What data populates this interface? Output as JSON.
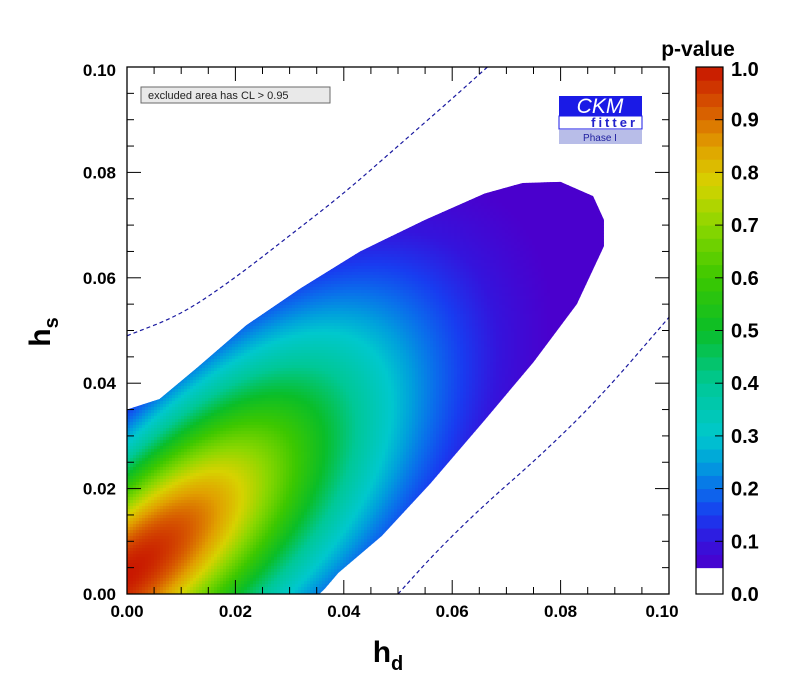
{
  "chart_data": {
    "type": "heatmap",
    "xlabel": "h",
    "xlabel_sub": "d",
    "ylabel": "h",
    "ylabel_sub": "s",
    "xlim": [
      0.0,
      0.1
    ],
    "ylim": [
      0.0,
      0.1
    ],
    "x_ticks": [
      "0.00",
      "0.02",
      "0.04",
      "0.06",
      "0.08",
      "0.10"
    ],
    "y_ticks": [
      "0.00",
      "0.02",
      "0.04",
      "0.06",
      "0.08",
      "0.10"
    ],
    "colorbar": {
      "title": "p-value",
      "range": [
        0.0,
        1.0
      ],
      "ticks": [
        "0.0",
        "0.1",
        "0.2",
        "0.3",
        "0.4",
        "0.5",
        "0.6",
        "0.7",
        "0.8",
        "0.9",
        "1.0"
      ]
    },
    "best_fit": {
      "hd": 0.0,
      "hs": 0.0,
      "p": 1.0
    },
    "allowed_region_boundary_p005": [
      [
        0.0,
        0.0
      ],
      [
        0.0,
        0.035
      ],
      [
        0.006,
        0.037
      ],
      [
        0.013,
        0.043
      ],
      [
        0.022,
        0.051
      ],
      [
        0.032,
        0.058
      ],
      [
        0.043,
        0.065
      ],
      [
        0.055,
        0.071
      ],
      [
        0.066,
        0.076
      ],
      [
        0.073,
        0.078
      ],
      [
        0.08,
        0.0782
      ],
      [
        0.086,
        0.0755
      ],
      [
        0.088,
        0.071
      ],
      [
        0.088,
        0.066
      ],
      [
        0.083,
        0.055
      ],
      [
        0.075,
        0.044
      ],
      [
        0.066,
        0.033
      ],
      [
        0.056,
        0.021
      ],
      [
        0.047,
        0.011
      ],
      [
        0.039,
        0.004
      ],
      [
        0.0365,
        0.001
      ],
      [
        0.0355,
        0.0
      ]
    ],
    "dashed_contours": [
      {
        "points": [
          [
            0.0,
            0.049
          ],
          [
            0.01,
            0.053
          ],
          [
            0.02,
            0.06
          ],
          [
            0.03,
            0.068
          ],
          [
            0.04,
            0.076
          ],
          [
            0.05,
            0.085
          ],
          [
            0.06,
            0.094
          ],
          [
            0.0665,
            0.1
          ]
        ]
      },
      {
        "points": [
          [
            0.05,
            0.0
          ],
          [
            0.057,
            0.008
          ],
          [
            0.066,
            0.017
          ],
          [
            0.076,
            0.026
          ],
          [
            0.087,
            0.037
          ],
          [
            0.1,
            0.0525
          ]
        ]
      }
    ],
    "annotation": "excluded area has CL > 0.95"
  },
  "logo": {
    "main": "CKM",
    "sub": "fitter",
    "phase": "Phase I"
  }
}
